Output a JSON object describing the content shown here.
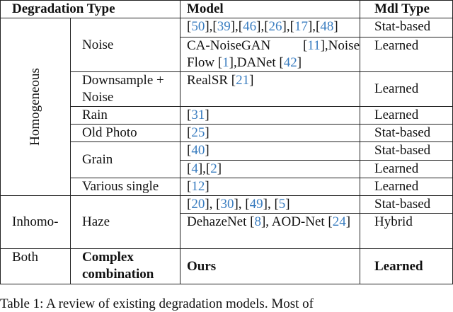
{
  "headers": {
    "degradation_type": "Degradation Type",
    "model": "Model",
    "mdl_type": "Mdl Type"
  },
  "groups": {
    "homogeneous": "Homogeneous",
    "inhomogeneous": "Inhomo-",
    "both": "Both"
  },
  "rows": [
    {
      "type": "Noise",
      "model": [
        {
          "t": "["
        },
        {
          "c": "50"
        },
        {
          "t": "],["
        },
        {
          "c": "39"
        },
        {
          "t": "],["
        },
        {
          "c": "46"
        },
        {
          "t": "],["
        },
        {
          "c": "26"
        },
        {
          "t": "],["
        },
        {
          "c": "17"
        },
        {
          "t": "],["
        },
        {
          "c": "48"
        },
        {
          "t": "]"
        }
      ],
      "mdl": "Stat-based"
    },
    {
      "type": "",
      "model": [
        {
          "t": "CA-NoiseGAN ["
        },
        {
          "c": "11"
        },
        {
          "t": "],Noise Flow ["
        },
        {
          "c": "1"
        },
        {
          "t": "],DANet ["
        },
        {
          "c": "42"
        },
        {
          "t": "]"
        }
      ],
      "mdl": "Learned"
    },
    {
      "type": "Downsample + Noise",
      "model": [
        {
          "t": "RealSR ["
        },
        {
          "c": "21"
        },
        {
          "t": "]"
        }
      ],
      "mdl": "Learned"
    },
    {
      "type": "Rain",
      "model": [
        {
          "t": "["
        },
        {
          "c": "31"
        },
        {
          "t": "]"
        }
      ],
      "mdl": "Learned"
    },
    {
      "type": "Old Photo",
      "model": [
        {
          "t": "["
        },
        {
          "c": "25"
        },
        {
          "t": "]"
        }
      ],
      "mdl": "Stat-based"
    },
    {
      "type": "Grain",
      "model": [
        {
          "t": "["
        },
        {
          "c": "40"
        },
        {
          "t": "]"
        }
      ],
      "mdl": "Stat-based"
    },
    {
      "type": "",
      "model": [
        {
          "t": "["
        },
        {
          "c": "4"
        },
        {
          "t": "],["
        },
        {
          "c": "2"
        },
        {
          "t": "]"
        }
      ],
      "mdl": "Learned"
    },
    {
      "type": "Various single",
      "model": [
        {
          "t": "["
        },
        {
          "c": "12"
        },
        {
          "t": "]"
        }
      ],
      "mdl": "Learned"
    },
    {
      "type": "Haze",
      "model": [
        {
          "t": "["
        },
        {
          "c": "20"
        },
        {
          "t": "], ["
        },
        {
          "c": "30"
        },
        {
          "t": "], ["
        },
        {
          "c": "49"
        },
        {
          "t": "], ["
        },
        {
          "c": "5"
        },
        {
          "t": "]"
        }
      ],
      "mdl": "Stat-based"
    },
    {
      "type": "",
      "model": [
        {
          "t": "DehazeNet ["
        },
        {
          "c": "8"
        },
        {
          "t": "],  AOD-Net ["
        },
        {
          "c": "24"
        },
        {
          "t": "]"
        }
      ],
      "mdl": "Hybrid"
    },
    {
      "type": "Complex combination",
      "model": [
        {
          "t": "Ours"
        }
      ],
      "mdl": "Learned",
      "bold": true
    }
  ],
  "caption": "Table 1: A review of existing degradation models. Most of",
  "colors": {
    "citation": "#3a7dc0",
    "border": "#222222"
  }
}
